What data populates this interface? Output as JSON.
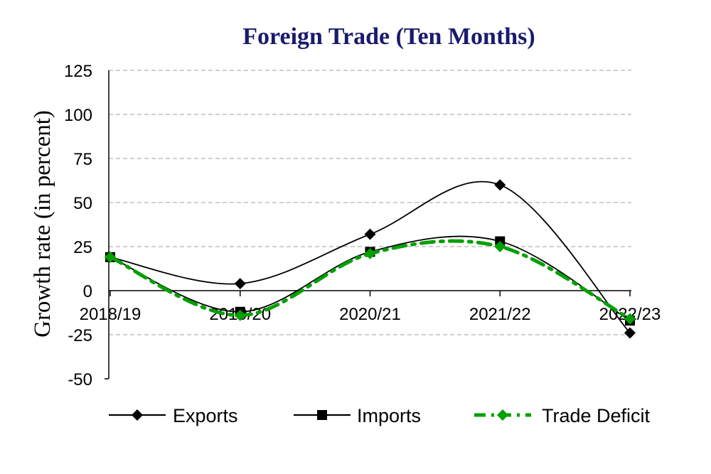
{
  "chart_data": {
    "type": "line",
    "title": "Foreign Trade (Ten Months)",
    "xlabel": "",
    "ylabel": "Growth rate (in percent)",
    "categories": [
      "2018/19",
      "2019/20",
      "2020/21",
      "2021/22",
      "2022/23"
    ],
    "ylim": [
      -50,
      125
    ],
    "yticks": [
      125,
      100,
      75,
      50,
      25,
      0,
      -25,
      -50
    ],
    "grid": "horizontal dashed",
    "legend_position": "bottom",
    "smooth": true,
    "series": [
      {
        "name": "Exports",
        "values": [
          19,
          4,
          32,
          60,
          -24
        ],
        "color": "#000000",
        "marker": "diamond",
        "line": "solid"
      },
      {
        "name": "Imports",
        "values": [
          19,
          -12,
          22,
          28,
          -17
        ],
        "color": "#000000",
        "marker": "square",
        "line": "solid"
      },
      {
        "name": "Trade Deficit",
        "values": [
          19,
          -14,
          21,
          25,
          -16
        ],
        "color": "#00a000",
        "marker": "diamond",
        "line": "dash-dot"
      }
    ]
  }
}
